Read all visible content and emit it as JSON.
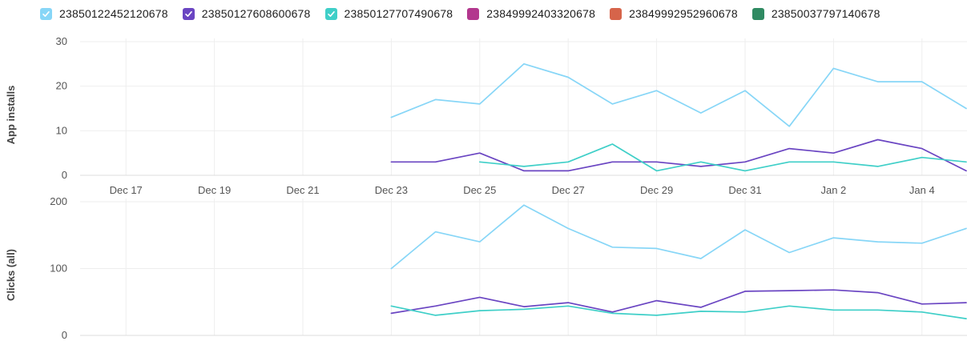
{
  "legend": [
    {
      "label": "23850122452120678",
      "color": "#87d6f7",
      "checked": true
    },
    {
      "label": "23850127608600678",
      "color": "#6a45c2",
      "checked": true
    },
    {
      "label": "23850127707490678",
      "color": "#3fcfc8",
      "checked": true
    },
    {
      "label": "23849992403320678",
      "color": "#b3378e",
      "checked": false
    },
    {
      "label": "23849992952960678",
      "color": "#d6644a",
      "checked": false
    },
    {
      "label": "23850037797140678",
      "color": "#2f8a62",
      "checked": false
    }
  ],
  "chart_data": [
    {
      "type": "line",
      "ylabel": "App installs",
      "ylim": [
        0,
        30
      ],
      "yticks": [
        0,
        10,
        20,
        30
      ],
      "x": [
        "Dec 16",
        "Dec 17",
        "Dec 18",
        "Dec 19",
        "Dec 20",
        "Dec 21",
        "Dec 22",
        "Dec 23",
        "Dec 24",
        "Dec 25",
        "Dec 26",
        "Dec 27",
        "Dec 28",
        "Dec 29",
        "Dec 30",
        "Dec 31",
        "Jan 1",
        "Jan 2",
        "Jan 3",
        "Jan 4",
        "Jan 5"
      ],
      "xticks": [
        "Dec 17",
        "Dec 19",
        "Dec 21",
        "Dec 23",
        "Dec 25",
        "Dec 27",
        "Dec 29",
        "Dec 31",
        "Jan 2",
        "Jan 4"
      ],
      "series": [
        {
          "name": "23850122452120678",
          "color": "#87d6f7",
          "values": [
            null,
            null,
            null,
            null,
            null,
            null,
            null,
            13,
            17,
            16,
            25,
            22,
            16,
            19,
            14,
            19,
            11,
            24,
            21,
            21,
            15
          ]
        },
        {
          "name": "23850127608600678",
          "color": "#6a45c2",
          "values": [
            null,
            null,
            null,
            null,
            null,
            null,
            null,
            3,
            3,
            5,
            1,
            1,
            3,
            3,
            2,
            3,
            6,
            5,
            8,
            6,
            1
          ]
        },
        {
          "name": "23850127707490678",
          "color": "#3fcfc8",
          "values": [
            null,
            null,
            null,
            null,
            null,
            null,
            null,
            null,
            null,
            3,
            2,
            3,
            7,
            1,
            3,
            1,
            3,
            3,
            2,
            4,
            3
          ]
        }
      ]
    },
    {
      "type": "line",
      "ylabel": "Clicks (all)",
      "ylim": [
        0,
        200
      ],
      "yticks": [
        0,
        100,
        200
      ],
      "x": [
        "Dec 16",
        "Dec 17",
        "Dec 18",
        "Dec 19",
        "Dec 20",
        "Dec 21",
        "Dec 22",
        "Dec 23",
        "Dec 24",
        "Dec 25",
        "Dec 26",
        "Dec 27",
        "Dec 28",
        "Dec 29",
        "Dec 30",
        "Dec 31",
        "Jan 1",
        "Jan 2",
        "Jan 3",
        "Jan 4",
        "Jan 5"
      ],
      "series": [
        {
          "name": "23850122452120678",
          "color": "#87d6f7",
          "values": [
            null,
            null,
            null,
            null,
            null,
            null,
            null,
            100,
            155,
            140,
            195,
            160,
            132,
            130,
            115,
            158,
            124,
            146,
            140,
            138,
            160
          ]
        },
        {
          "name": "23850127608600678",
          "color": "#6a45c2",
          "values": [
            null,
            null,
            null,
            null,
            null,
            null,
            null,
            33,
            44,
            57,
            43,
            49,
            35,
            52,
            42,
            66,
            67,
            68,
            64,
            47,
            49
          ]
        },
        {
          "name": "23850127707490678",
          "color": "#3fcfc8",
          "values": [
            null,
            null,
            null,
            null,
            null,
            null,
            null,
            44,
            30,
            37,
            39,
            44,
            33,
            30,
            36,
            35,
            44,
            38,
            38,
            35,
            25
          ]
        }
      ]
    }
  ]
}
